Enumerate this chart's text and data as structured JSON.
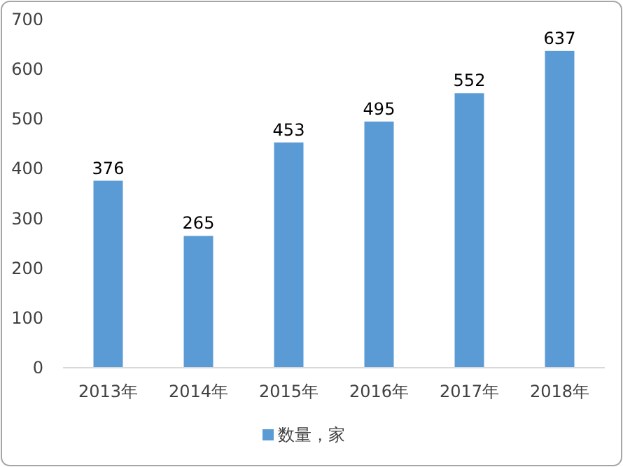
{
  "chart_data": {
    "type": "bar",
    "categories": [
      "2013年",
      "2014年",
      "2015年",
      "2016年",
      "2017年",
      "2018年"
    ],
    "series": [
      {
        "name": "数量，家",
        "color": "#5b9bd5",
        "values": [
          376,
          265,
          453,
          495,
          552,
          637
        ]
      }
    ],
    "ylim": [
      0,
      700
    ],
    "yticks": [
      0,
      100,
      200,
      300,
      400,
      500,
      600,
      700
    ],
    "data_labels": true,
    "legend": "bottom"
  }
}
